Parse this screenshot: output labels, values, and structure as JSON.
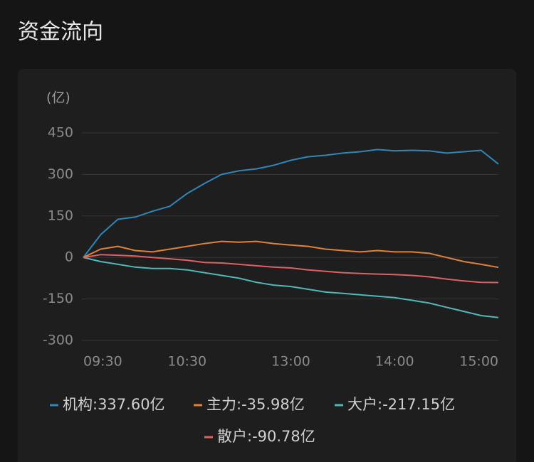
{
  "header": {
    "title": "资金流向"
  },
  "chart_data": {
    "type": "line",
    "y_unit": "(亿)",
    "x": [
      0,
      10,
      20,
      30,
      40,
      50,
      60,
      70,
      80,
      90,
      100,
      110,
      120,
      130,
      140,
      150,
      160,
      170,
      180,
      190,
      200,
      210,
      220,
      230,
      240
    ],
    "xlim": [
      0,
      240
    ],
    "xticks": [
      {
        "value": 0,
        "label": "09:30"
      },
      {
        "value": 60,
        "label": "10:30"
      },
      {
        "value": 120,
        "label": "13:00"
      },
      {
        "value": 180,
        "label": "14:00"
      },
      {
        "value": 240,
        "label": "15:00"
      }
    ],
    "ylim": [
      -300,
      450
    ],
    "yticks": [
      450,
      300,
      150,
      0,
      -150,
      -300
    ],
    "grid": true,
    "series": [
      {
        "name": "机构:337.60亿",
        "color": "#2f86b8",
        "values": [
          0,
          82,
          138,
          146,
          167,
          185,
          231,
          267,
          300,
          313,
          320,
          333,
          351,
          364,
          369,
          377,
          382,
          390,
          385,
          387,
          385,
          377,
          382,
          387,
          337.6
        ]
      },
      {
        "name": "主力:-35.98亿",
        "color": "#e0813a",
        "values": [
          0,
          30,
          40,
          25,
          20,
          30,
          40,
          50,
          58,
          55,
          58,
          50,
          45,
          40,
          30,
          25,
          20,
          25,
          20,
          20,
          15,
          0,
          -15,
          -25,
          -35.98
        ]
      },
      {
        "name": "大户:-217.15亿",
        "color": "#4fb8b8",
        "values": [
          0,
          -15,
          -25,
          -35,
          -40,
          -40,
          -45,
          -55,
          -65,
          -75,
          -90,
          -100,
          -105,
          -115,
          -125,
          -130,
          -135,
          -140,
          -145,
          -155,
          -165,
          -180,
          -195,
          -210,
          -217.15
        ]
      },
      {
        "name": "散户:-90.78亿",
        "color": "#e06060",
        "values": [
          0,
          10,
          8,
          5,
          0,
          -5,
          -10,
          -18,
          -20,
          -25,
          -30,
          -35,
          -38,
          -45,
          -50,
          -55,
          -58,
          -60,
          -62,
          -65,
          -70,
          -78,
          -85,
          -90,
          -90.78
        ]
      }
    ]
  }
}
